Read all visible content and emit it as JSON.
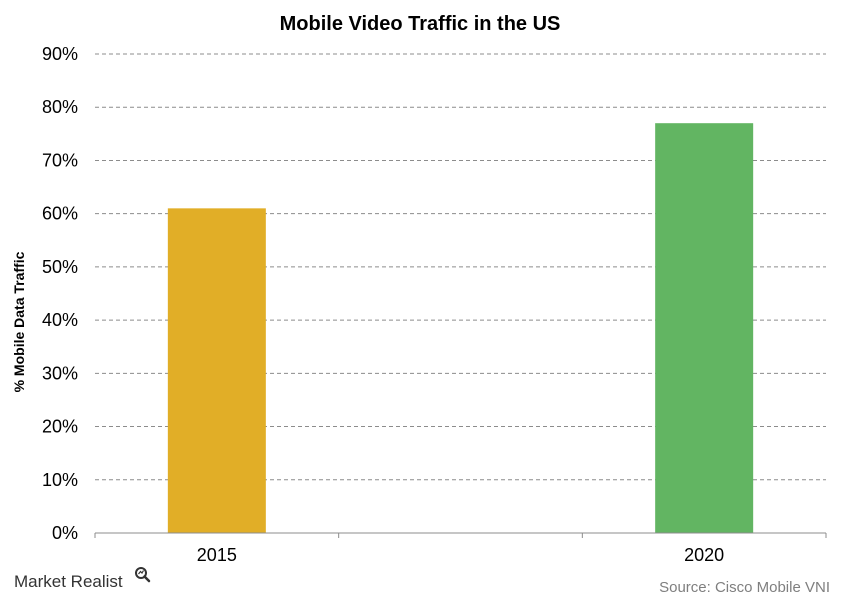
{
  "chart_data": {
    "type": "bar",
    "title": "Mobile Video Traffic in the US",
    "ylabel": "% Mobile Data Traffic",
    "xlabel": "",
    "categories": [
      "2015",
      "2020"
    ],
    "values": [
      61,
      77
    ],
    "bar_colors": [
      "#e1ae27",
      "#62b562"
    ],
    "ylim": [
      0,
      90
    ],
    "yticks": [
      0,
      10,
      20,
      30,
      40,
      50,
      60,
      70,
      80,
      90
    ],
    "ytick_labels": [
      "0%",
      "10%",
      "20%",
      "30%",
      "40%",
      "50%",
      "60%",
      "70%",
      "80%",
      "90%"
    ],
    "grid": true,
    "grid_style": "dashed",
    "legend": "none"
  },
  "footer": {
    "source": "Source: Cisco Mobile VNI",
    "brand_name": "Market Realist",
    "brand_icon": "magnifier-icon"
  }
}
